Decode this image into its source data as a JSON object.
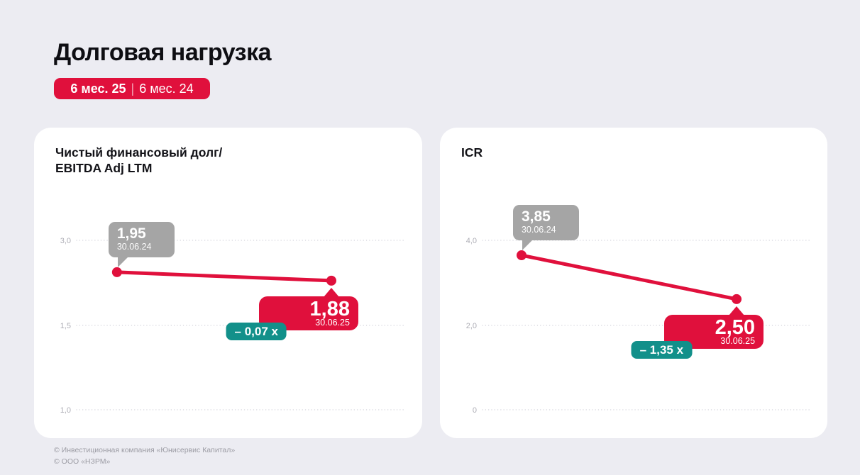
{
  "header": {
    "title": "Долговая нагрузка",
    "badge": {
      "current": "6 мес. 25",
      "separator": "|",
      "previous": "6 мес. 24"
    }
  },
  "footer": {
    "line1": "© Инвестиционная компания «Юнисервис Капитал»",
    "line2": "© ООО «НЗРМ»"
  },
  "colors": {
    "accent_red": "#E0103C",
    "teal": "#12908A",
    "gray_callout": "#A5A5A5",
    "page_bg": "#ECECF2",
    "card_bg": "#FFFFFF",
    "grid": "#D8D8DF",
    "axis_label": "#AEAEB6",
    "footer_text": "#9C9CA4"
  },
  "chart_data": [
    {
      "type": "line",
      "title_lines": [
        "Чистый финансовый долг/",
        "EBITDA Adj LTM"
      ],
      "ytick_labels": [
        "3,0",
        "1,5",
        "1,0"
      ],
      "series": [
        {
          "name": "Чистый финансовый долг/EBITDA Adj LTM",
          "x": [
            "30.06.24",
            "30.06.25"
          ],
          "values": [
            1.95,
            1.88
          ]
        }
      ],
      "points": [
        {
          "value_label": "1,95",
          "date": "30.06.24",
          "style": "gray"
        },
        {
          "value_label": "1,88",
          "date": "30.06.25",
          "style": "red"
        }
      ],
      "delta_label": "– 0,07 x",
      "layout": {
        "grid": true,
        "legend": false,
        "ytick_values": [
          3.0,
          1.5,
          1.0
        ],
        "point_pos": [
          [
            0.123,
            0.188
          ],
          [
            0.777,
            0.238
          ]
        ]
      }
    },
    {
      "type": "line",
      "title_lines": [
        "ICR"
      ],
      "ytick_labels": [
        "4,0",
        "2,0",
        "0"
      ],
      "series": [
        {
          "name": "ICR",
          "x": [
            "30.06.24",
            "30.06.25"
          ],
          "values": [
            3.85,
            2.5
          ]
        }
      ],
      "points": [
        {
          "value_label": "3,85",
          "date": "30.06.24",
          "style": "gray"
        },
        {
          "value_label": "2,50",
          "date": "30.06.25",
          "style": "red"
        }
      ],
      "delta_label": "– 1,35 x",
      "layout": {
        "grid": true,
        "legend": false,
        "ytick_values": [
          4.0,
          2.0,
          0
        ],
        "ylim": [
          0,
          4
        ],
        "point_pos": [
          [
            0.119,
            0.088
          ],
          [
            0.775,
            0.347
          ]
        ]
      }
    }
  ]
}
